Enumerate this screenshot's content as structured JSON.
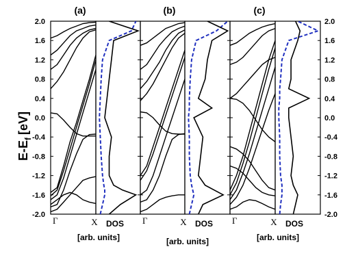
{
  "chart_data": {
    "type": "line",
    "ylabel": "E-E",
    "ylabel_sub": "f",
    "ylabel_unit": "[eV]",
    "ylim": [
      -2.0,
      2.0
    ],
    "yticks": [
      "-2.0",
      "-1.6",
      "-1.2",
      "-0.8",
      "-0.4",
      "0.0",
      "0.4",
      "0.8",
      "1.2",
      "1.6",
      "2.0"
    ],
    "yticks_values": [
      -2.0,
      -1.6,
      -1.2,
      -0.8,
      -0.4,
      0.0,
      0.4,
      0.8,
      1.2,
      1.6,
      2.0
    ],
    "band_xticks": [
      "Γ",
      "X"
    ],
    "dos_xlabel": "DOS",
    "dos_units": "[arb. units]",
    "panels": [
      {
        "label": "(a)",
        "bands": [
          [
            -1.55,
            -1.45,
            -1.0,
            -0.5,
            -0.1,
            0.35,
            0.8,
            1.3
          ],
          [
            -1.62,
            -1.5,
            -1.1,
            -0.65,
            -0.2,
            0.25,
            0.7,
            1.2
          ],
          [
            -1.7,
            -1.6,
            -1.25,
            -0.8,
            -0.35,
            0.1,
            0.55,
            1.0
          ],
          [
            -1.85,
            -1.8,
            -1.5,
            -1.1,
            -0.75,
            -0.45,
            -0.35,
            -0.34
          ],
          [
            0.1,
            0.08,
            -0.05,
            -0.2,
            -0.33,
            -0.38,
            -0.38,
            -0.38
          ],
          [
            0.6,
            0.75,
            0.95,
            1.2,
            1.45,
            1.65,
            1.78,
            1.82
          ],
          [
            1.0,
            1.1,
            1.3,
            1.5,
            1.65,
            1.75,
            1.82,
            1.85
          ],
          [
            1.3,
            1.4,
            1.55,
            1.7,
            1.8,
            1.85,
            1.9,
            1.92
          ],
          [
            1.65,
            1.7,
            1.78,
            1.85,
            1.9,
            1.95,
            1.97,
            1.98
          ],
          [
            -1.95,
            -1.9,
            -1.75,
            -1.6,
            -1.45,
            -1.3,
            -1.25,
            -1.22
          ],
          [
            -1.8,
            -1.7,
            -1.6,
            -1.55,
            -1.6,
            -1.7,
            -1.75,
            -1.78
          ]
        ],
        "dos_energy": [
          -2.0,
          -1.8,
          -1.6,
          -1.5,
          -1.4,
          -1.2,
          -0.8,
          -0.4,
          0.0,
          0.4,
          0.8,
          1.2,
          1.6,
          1.8,
          2.0
        ],
        "dos_total": [
          0.3,
          0.55,
          0.9,
          0.6,
          0.4,
          0.3,
          0.3,
          0.35,
          0.2,
          0.25,
          0.3,
          0.35,
          0.4,
          0.95,
          0.3
        ],
        "dos_reference": [
          0.1,
          0.15,
          0.2,
          0.2,
          0.18,
          0.15,
          0.12,
          0.1,
          0.08,
          0.1,
          0.12,
          0.15,
          0.3,
          0.8,
          0.9
        ]
      },
      {
        "label": "(b)",
        "bands": [
          [
            -1.2,
            -1.0,
            -0.6,
            -0.2,
            0.2,
            0.6,
            1.0,
            1.4
          ],
          [
            -1.3,
            -1.1,
            -0.75,
            -0.35,
            0.05,
            0.45,
            0.85,
            1.25
          ],
          [
            -1.6,
            -1.5,
            -1.2,
            -0.8,
            -0.4,
            0.0,
            0.4,
            0.8
          ],
          [
            -1.75,
            -1.7,
            -1.5,
            -1.2,
            -0.8,
            -0.45,
            -0.35,
            -0.33
          ],
          [
            0.12,
            0.1,
            0.0,
            -0.15,
            -0.28,
            -0.33,
            -0.34,
            -0.34
          ],
          [
            0.35,
            0.5,
            0.7,
            0.95,
            1.2,
            1.45,
            1.65,
            1.75
          ],
          [
            0.6,
            0.75,
            0.95,
            1.15,
            1.4,
            1.6,
            1.75,
            1.82
          ],
          [
            1.0,
            1.1,
            1.3,
            1.5,
            1.65,
            1.78,
            1.85,
            1.9
          ],
          [
            1.5,
            1.55,
            1.65,
            1.75,
            1.85,
            1.9,
            1.95,
            1.97
          ],
          [
            -1.95,
            -1.9,
            -1.8,
            -1.7,
            -1.65,
            -1.62,
            -1.6,
            -1.6
          ]
        ],
        "dos_energy": [
          -2.0,
          -1.8,
          -1.6,
          -1.4,
          -1.2,
          -0.8,
          -0.4,
          0.0,
          0.2,
          0.4,
          0.8,
          1.2,
          1.6,
          1.8,
          2.0
        ],
        "dos_total": [
          0.3,
          0.4,
          0.85,
          0.45,
          0.3,
          0.35,
          0.4,
          0.2,
          0.6,
          0.3,
          0.45,
          0.5,
          0.6,
          0.95,
          0.5
        ],
        "dos_reference": [
          0.1,
          0.15,
          0.2,
          0.15,
          0.12,
          0.1,
          0.1,
          0.08,
          0.1,
          0.1,
          0.12,
          0.15,
          0.25,
          0.7,
          0.95
        ]
      },
      {
        "label": "(c)",
        "bands": [
          [
            -1.5,
            -1.2,
            -0.8,
            -0.3,
            0.2,
            0.7,
            1.2,
            1.6
          ],
          [
            -1.6,
            -1.35,
            -0.95,
            -0.5,
            0.0,
            0.5,
            1.0,
            1.45
          ],
          [
            -1.7,
            -1.5,
            -1.15,
            -0.75,
            -0.3,
            0.15,
            0.6,
            1.05
          ],
          [
            -1.8,
            -1.65,
            -1.4,
            -1.05,
            -0.65,
            -0.25,
            0.15,
            0.5
          ],
          [
            0.4,
            0.38,
            0.3,
            0.15,
            -0.05,
            -0.25,
            -0.4,
            -0.5
          ],
          [
            0.4,
            0.5,
            0.65,
            0.8,
            0.95,
            1.1,
            1.2,
            1.25
          ],
          [
            1.1,
            1.15,
            1.25,
            1.4,
            1.55,
            1.7,
            1.8,
            1.85
          ],
          [
            1.5,
            1.55,
            1.65,
            1.75,
            1.82,
            1.88,
            1.92,
            1.95
          ],
          [
            -1.0,
            -1.05,
            -1.15,
            -1.3,
            -1.45,
            -1.55,
            -1.6,
            -1.62
          ],
          [
            -0.6,
            -0.65,
            -0.75,
            -0.9,
            -1.1,
            -1.3,
            -1.45,
            -1.5
          ],
          [
            -1.9,
            -1.85,
            -1.75,
            -1.7,
            -1.72,
            -1.78,
            -1.85,
            -1.9
          ]
        ],
        "dos_energy": [
          -2.0,
          -1.8,
          -1.6,
          -1.4,
          -1.2,
          -0.8,
          -0.4,
          0.0,
          0.2,
          0.4,
          0.6,
          0.8,
          1.2,
          1.6,
          1.8,
          2.0
        ],
        "dos_total": [
          0.4,
          0.45,
          0.5,
          0.4,
          0.35,
          0.4,
          0.35,
          0.3,
          0.3,
          0.75,
          0.3,
          0.35,
          0.35,
          0.5,
          0.55,
          0.45
        ],
        "dos_reference": [
          0.1,
          0.12,
          0.15,
          0.15,
          0.12,
          0.1,
          0.1,
          0.08,
          0.08,
          0.1,
          0.1,
          0.12,
          0.15,
          0.3,
          0.95,
          0.5
        ]
      }
    ],
    "series": [
      {
        "name": "",
        "color": "#000000",
        "style": "solid"
      },
      {
        "name": "",
        "color": "#1f2fbf",
        "style": "dashed"
      }
    ]
  }
}
